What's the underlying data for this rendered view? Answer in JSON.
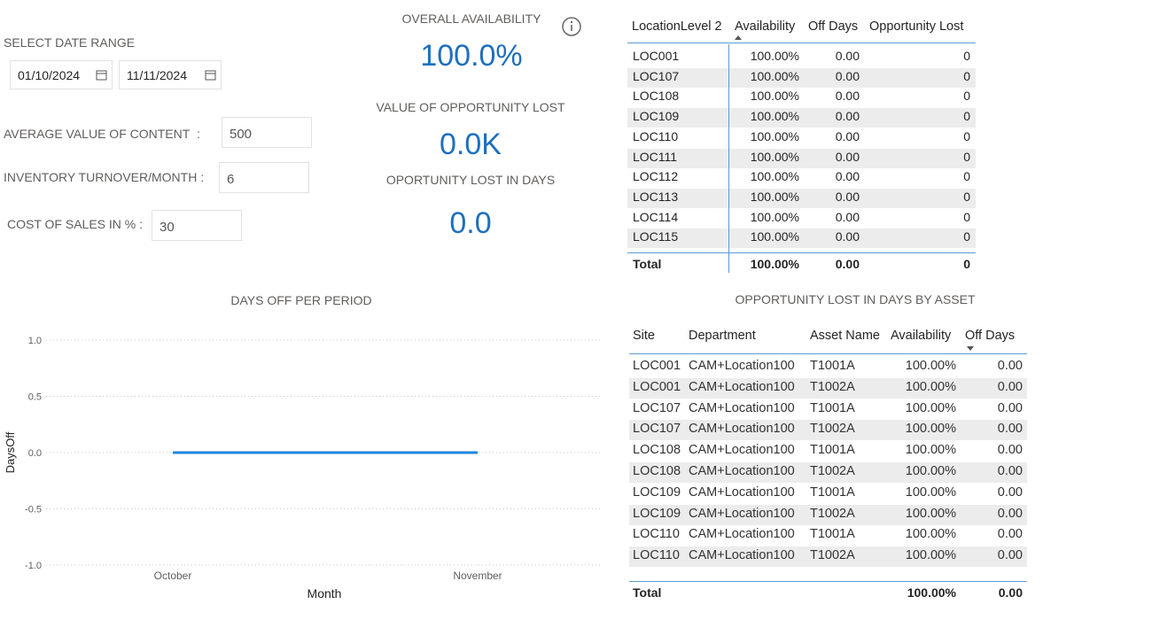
{
  "filters": {
    "date_label": "SELECT DATE RANGE",
    "start_date": "01/10/2024",
    "end_date": "11/11/2024",
    "inputs": [
      {
        "label": "AVERAGE VALUE OF CONTENT",
        "separator": ":",
        "value": 500
      },
      {
        "label": "INVENTORY TURNOVER/MONTH :",
        "value": 6
      },
      {
        "label": "COST OF SALES IN % :",
        "value": 30
      }
    ]
  },
  "kpis": [
    {
      "title": "OVERALL AVAILABILITY",
      "value": "100.0%"
    },
    {
      "title": "VALUE OF OPPORTUNITY LOST",
      "value": "0.0K"
    },
    {
      "title": "OPORTUNITY LOST IN DAYS",
      "value": "0.0"
    }
  ],
  "location_table": {
    "columns": [
      "LocationLevel 2",
      "Availability",
      "Off Days",
      "Opportunity Lost"
    ],
    "rows": [
      [
        "LOC001",
        "100.00%",
        "0.00",
        "0"
      ],
      [
        "LOC107",
        "100.00%",
        "0.00",
        "0"
      ],
      [
        "LOC108",
        "100.00%",
        "0.00",
        "0"
      ],
      [
        "LOC109",
        "100.00%",
        "0.00",
        "0"
      ],
      [
        "LOC110",
        "100.00%",
        "0.00",
        "0"
      ],
      [
        "LOC111",
        "100.00%",
        "0.00",
        "0"
      ],
      [
        "LOC112",
        "100.00%",
        "0.00",
        "0"
      ],
      [
        "LOC113",
        "100.00%",
        "0.00",
        "0"
      ],
      [
        "LOC114",
        "100.00%",
        "0.00",
        "0"
      ],
      [
        "LOC115",
        "100.00%",
        "0.00",
        "0"
      ]
    ],
    "total": [
      "Total",
      "100.00%",
      "0.00",
      "0"
    ]
  },
  "asset_table": {
    "title": "OPPORTUNITY LOST IN DAYS BY ASSET",
    "columns": [
      "Site",
      "Department",
      "Asset Name",
      "Availability",
      "Off Days"
    ],
    "rows": [
      [
        "LOC001",
        "CAM+Location100",
        "T1001A",
        "100.00%",
        "0.00"
      ],
      [
        "LOC001",
        "CAM+Location100",
        "T1002A",
        "100.00%",
        "0.00"
      ],
      [
        "LOC107",
        "CAM+Location100",
        "T1001A",
        "100.00%",
        "0.00"
      ],
      [
        "LOC107",
        "CAM+Location100",
        "T1002A",
        "100.00%",
        "0.00"
      ],
      [
        "LOC108",
        "CAM+Location100",
        "T1001A",
        "100.00%",
        "0.00"
      ],
      [
        "LOC108",
        "CAM+Location100",
        "T1002A",
        "100.00%",
        "0.00"
      ],
      [
        "LOC109",
        "CAM+Location100",
        "T1001A",
        "100.00%",
        "0.00"
      ],
      [
        "LOC109",
        "CAM+Location100",
        "T1002A",
        "100.00%",
        "0.00"
      ],
      [
        "LOC110",
        "CAM+Location100",
        "T1001A",
        "100.00%",
        "0.00"
      ],
      [
        "LOC110",
        "CAM+Location100",
        "T1002A",
        "100.00%",
        "0.00"
      ]
    ],
    "total": {
      "label": "Total",
      "availability": "100.00%",
      "off_days": "0.00"
    }
  },
  "chart_data": {
    "type": "line",
    "title": "DAYS OFF PER PERIOD",
    "x_label": "Month",
    "y_label": "DaysOff",
    "categories": [
      "October",
      "November"
    ],
    "series": [
      {
        "name": "DaysOff",
        "color": "#1f85de",
        "values": [
          0,
          0
        ]
      }
    ],
    "ylim": [
      -1,
      1
    ],
    "yticks": [
      {
        "value": -1,
        "label": "-1.0"
      },
      {
        "value": -0.5,
        "label": "-0.5"
      },
      {
        "value": 0,
        "label": "0.0"
      },
      {
        "value": 0.5,
        "label": "0.5"
      },
      {
        "value": 1,
        "label": "1.0"
      }
    ],
    "grid": true
  }
}
